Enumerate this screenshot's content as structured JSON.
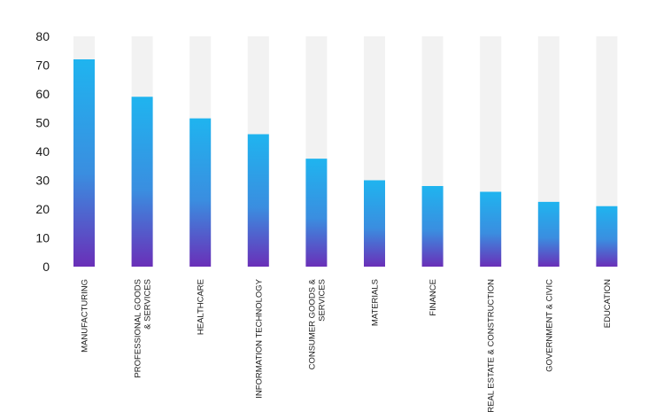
{
  "chart_data": {
    "type": "bar",
    "categories": [
      [
        "MANUFACTURING"
      ],
      [
        "PROFESSIONAL GOODS",
        "& SERVICES"
      ],
      [
        "HEALTHCARE"
      ],
      [
        "INFORMATION TECHNOLOGY"
      ],
      [
        "CONSUMER GOODS &",
        "SERVICES"
      ],
      [
        "MATERIALS"
      ],
      [
        "FINANCE"
      ],
      [
        "REAL ESTATE & CONSTRUCTION"
      ],
      [
        "GOVERNMENT & CIVIC"
      ],
      [
        "EDUCATION"
      ]
    ],
    "values": [
      72,
      59,
      51.5,
      46,
      37.5,
      30,
      28,
      26,
      22.5,
      21
    ],
    "max_value": 80,
    "ylim": [
      0,
      80
    ],
    "yticks": [
      "0",
      "10",
      "20",
      "30",
      "40",
      "50",
      "60",
      "70",
      "80"
    ],
    "grid": false,
    "legend": "none",
    "colors": {
      "track": "#f2f2f2",
      "gradient_top": "#1fb4ef",
      "gradient_mid": "#3a8ee0",
      "gradient_bottom": "#6a2fb8",
      "text": "#1a1a1a"
    }
  }
}
